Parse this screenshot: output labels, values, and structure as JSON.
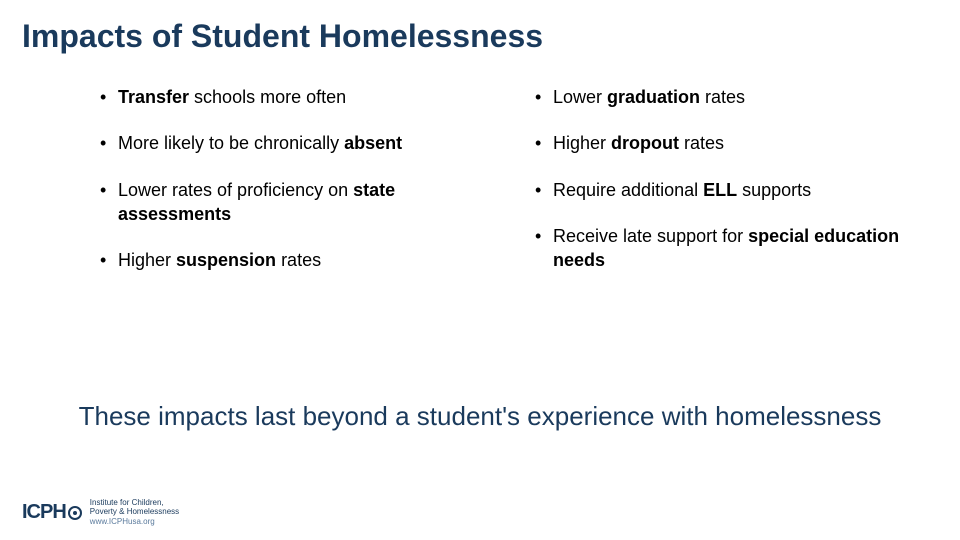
{
  "title": "Impacts of Student Homelessness",
  "leftColumn": [
    {
      "pre": "",
      "bold": "Transfer",
      "post": " schools more often"
    },
    {
      "pre": "More likely to be chronically ",
      "bold": "absent",
      "post": ""
    },
    {
      "pre": "Lower rates of proficiency on ",
      "bold": "state assessments",
      "post": ""
    },
    {
      "pre": "Higher ",
      "bold": "suspension",
      "post": " rates"
    }
  ],
  "rightColumn": [
    {
      "pre": "Lower ",
      "bold": "graduation",
      "post": " rates"
    },
    {
      "pre": "Higher ",
      "bold": "dropout",
      "post": " rates"
    },
    {
      "pre": "Require additional ",
      "bold": "ELL",
      "post": " supports"
    },
    {
      "pre": "Receive late support for ",
      "bold": "special education needs",
      "post": ""
    }
  ],
  "bottomText": "These impacts last beyond a student's experience with homelessness",
  "logo": {
    "mark": "ICPH",
    "line1": "Institute for Children,",
    "line2": "Poverty & Homelessness",
    "url": "www.ICPHusa.org"
  },
  "colors": {
    "titleColor": "#1a3a5c",
    "textColor": "#000000",
    "background": "#ffffff"
  },
  "typography": {
    "titleFontSize": 32,
    "bulletFontSize": 18,
    "bottomFontSize": 26
  }
}
